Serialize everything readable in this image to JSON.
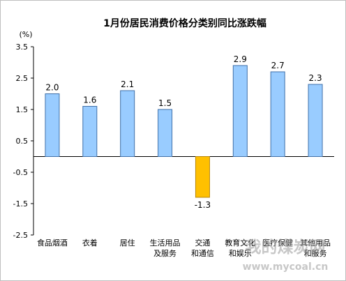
{
  "chart_data": {
    "type": "bar",
    "title": "1月份居民消费价格分类别同比涨跌幅",
    "unit": "(%)",
    "categories": [
      [
        "食品烟酒"
      ],
      [
        "衣着"
      ],
      [
        "居住"
      ],
      [
        "生活用品",
        "及服务"
      ],
      [
        "交通",
        "和通信"
      ],
      [
        "教育文化",
        "和娱乐"
      ],
      [
        "医疗保健"
      ],
      [
        "其他用品",
        "和服务"
      ]
    ],
    "values": [
      2.0,
      1.6,
      2.1,
      1.5,
      -1.3,
      2.9,
      2.7,
      2.3
    ],
    "value_labels": [
      "2.0",
      "1.6",
      "2.1",
      "1.5",
      "-1.3",
      "2.9",
      "2.7",
      "2.3"
    ],
    "yticks": [
      3.5,
      2.5,
      1.5,
      0.5,
      -0.5,
      -1.5,
      -2.5
    ],
    "ytick_labels": [
      "3.5",
      "2.5",
      "1.5",
      "0.5",
      "-0.5",
      "-1.5",
      "-2.5"
    ],
    "ylim": [
      -2.5,
      3.5
    ],
    "grid": false,
    "colors": {
      "positive_fill": "#99CCFF",
      "positive_stroke": "#3F6FA8",
      "negative_fill": "#FFC000",
      "negative_stroke": "#B7860B",
      "axis": "#000000"
    }
  },
  "watermark": {
    "text": "我的煤炭网",
    "url": "www.mycoal.cn"
  }
}
